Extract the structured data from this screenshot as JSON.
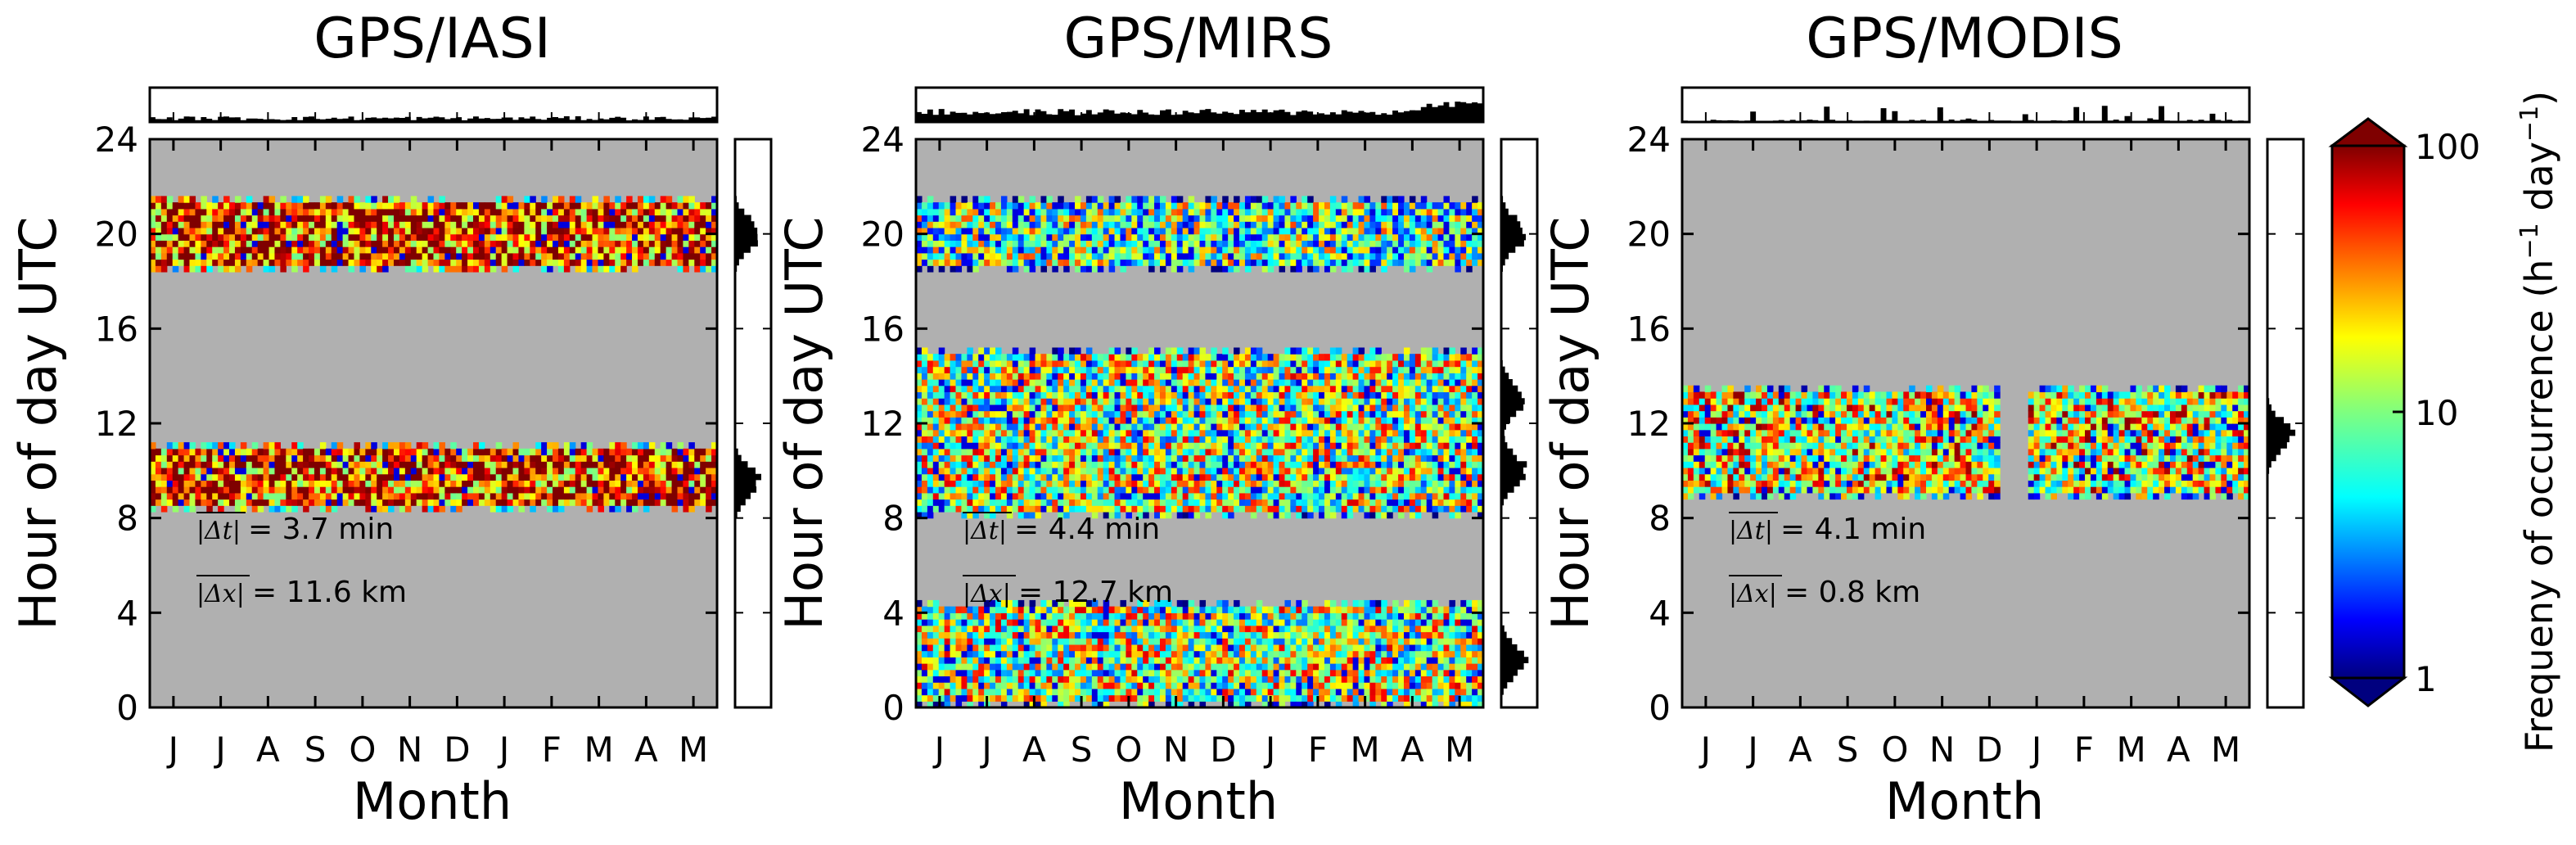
{
  "chart_data": [
    {
      "type": "heatmap",
      "title": "GPS/IASI",
      "xlabel": "Month",
      "ylabel": "Hour of day UTC",
      "x_tick_labels": [
        "J",
        "J",
        "A",
        "S",
        "O",
        "N",
        "D",
        "J",
        "F",
        "M",
        "A",
        "M"
      ],
      "y_ticks": [
        0,
        4,
        8,
        12,
        16,
        20,
        24
      ],
      "ylim": [
        0,
        24
      ],
      "bands": [
        {
          "hour_start": 8.5,
          "hour_end": 11,
          "level": "high"
        },
        {
          "hour_start": 18.5,
          "hour_end": 21.5,
          "level": "high"
        }
      ],
      "marginal_top": "low-uniform",
      "marginal_right_peaks": [
        9.5,
        20
      ],
      "annotations": {
        "mean_dt": "3.7 min",
        "mean_dx": "11.6 km"
      }
    },
    {
      "type": "heatmap",
      "title": "GPS/MIRS",
      "xlabel": "Month",
      "ylabel": "Hour of day UTC",
      "x_tick_labels": [
        "J",
        "J",
        "A",
        "S",
        "O",
        "N",
        "D",
        "J",
        "F",
        "M",
        "A",
        "M"
      ],
      "y_ticks": [
        0,
        4,
        8,
        12,
        16,
        20,
        24
      ],
      "ylim": [
        0,
        24
      ],
      "bands": [
        {
          "hour_start": 0,
          "hour_end": 4.5,
          "level": "mid"
        },
        {
          "hour_start": 8,
          "hour_end": 15,
          "level": "mid"
        },
        {
          "hour_start": 18.5,
          "hour_end": 21.5,
          "level": "mid-low"
        }
      ],
      "marginal_top": "high-uniform",
      "marginal_right_peaks": [
        2,
        10,
        13,
        20
      ],
      "annotations": {
        "mean_dt": "4.4 min",
        "mean_dx": "12.7 km"
      }
    },
    {
      "type": "heatmap",
      "title": "GPS/MODIS",
      "xlabel": "Month",
      "ylabel": "Hour of day UTC",
      "x_tick_labels": [
        "J",
        "J",
        "A",
        "S",
        "O",
        "N",
        "D",
        "J",
        "F",
        "M",
        "A",
        "M"
      ],
      "y_ticks": [
        0,
        4,
        8,
        12,
        16,
        20,
        24
      ],
      "ylim": [
        0,
        24
      ],
      "bands": [
        {
          "hour_start": 9,
          "hour_end": 13.5,
          "level": "mid-high"
        }
      ],
      "marginal_top": "sparse",
      "marginal_right_peaks": [
        11.5
      ],
      "annotations": {
        "mean_dt": "4.1 min",
        "mean_dx": "0.8 km"
      }
    }
  ],
  "colorbar": {
    "label": "Frequeny of occurrence (h",
    "label_sup1": "−1",
    "label_mid": " day",
    "label_sup2": "−1",
    "label_end": ")",
    "scale": "log",
    "ticks": [
      {
        "value": 1,
        "label": "1"
      },
      {
        "value": 10,
        "label": "10"
      },
      {
        "value": 100,
        "label": "100"
      }
    ],
    "colormap": "jet"
  },
  "text": {
    "dt_symbol": "|Δt|",
    "dx_symbol": "|Δx|"
  }
}
